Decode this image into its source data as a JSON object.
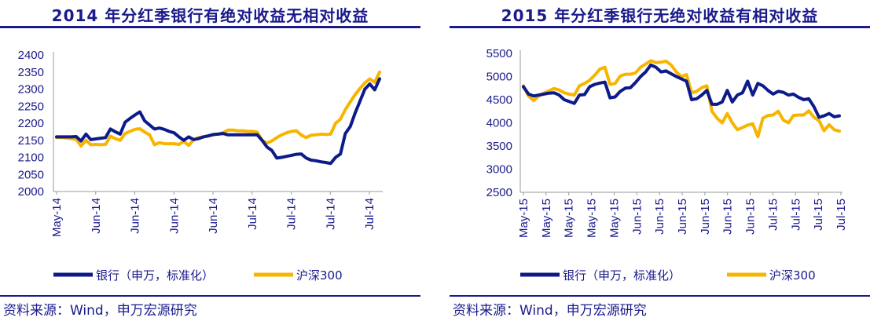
{
  "panels": [
    {
      "title": "2014 年分红季银行有绝对收益无相对收益",
      "source": "资料来源：Wind，申万宏源研究"
    },
    {
      "title": "2015 年分红季银行无绝对收益有相对收益",
      "source": "资料来源：Wind，申万宏源研究"
    }
  ],
  "colors": {
    "bank": "#0d1a8a",
    "hs300": "#f7b500",
    "text": "#1a1a8c"
  },
  "chart_data": [
    {
      "type": "line",
      "title": "2014 年分红季银行有绝对收益无相对收益",
      "ylim": [
        2000,
        2400
      ],
      "yticks": [
        2000,
        2050,
        2100,
        2150,
        2200,
        2250,
        2300,
        2350,
        2400
      ],
      "xticks": [
        "May-14",
        "Jun-14",
        "Jun-14",
        "Jun-14",
        "Jun-14",
        "Jul-14",
        "Jul-14",
        "Jul-14",
        "Jul-14"
      ],
      "legend_position": "bottom",
      "series": [
        {
          "name": "银行（申万，标准化）",
          "values": [
            2160,
            2160,
            2160,
            2160,
            2161,
            2148,
            2168,
            2152,
            2154,
            2156,
            2158,
            2183,
            2175,
            2168,
            2203,
            2214,
            2224,
            2233,
            2207,
            2195,
            2183,
            2186,
            2182,
            2176,
            2172,
            2160,
            2150,
            2160,
            2152,
            2155,
            2160,
            2163,
            2167,
            2168,
            2170,
            2166,
            2166,
            2166,
            2166,
            2166,
            2166,
            2166,
            2150,
            2130,
            2120,
            2098,
            2100,
            2103,
            2106,
            2109,
            2110,
            2098,
            2092,
            2090,
            2087,
            2085,
            2082,
            2100,
            2110,
            2170,
            2190,
            2230,
            2265,
            2300,
            2315,
            2298,
            2330
          ]
        },
        {
          "name": "沪深300",
          "values": [
            2158,
            2158,
            2157,
            2155,
            2153,
            2133,
            2150,
            2137,
            2138,
            2137,
            2138,
            2162,
            2155,
            2150,
            2170,
            2176,
            2182,
            2184,
            2174,
            2166,
            2137,
            2143,
            2140,
            2140,
            2140,
            2138,
            2147,
            2135,
            2152,
            2158,
            2160,
            2162,
            2166,
            2168,
            2172,
            2180,
            2180,
            2178,
            2178,
            2176,
            2176,
            2174,
            2150,
            2142,
            2148,
            2158,
            2166,
            2172,
            2176,
            2178,
            2165,
            2158,
            2165,
            2166,
            2168,
            2167,
            2168,
            2200,
            2212,
            2240,
            2262,
            2284,
            2302,
            2318,
            2330,
            2320,
            2350
          ]
        }
      ]
    },
    {
      "type": "line",
      "title": "2015 年分红季银行无绝对收益有相对收益",
      "ylim": [
        2500,
        5500
      ],
      "yticks": [
        2500,
        3000,
        3500,
        4000,
        4500,
        5000,
        5500
      ],
      "xticks": [
        "May-15",
        "May-15",
        "May-15",
        "May-15",
        "May-15",
        "Jun-15",
        "Jun-15",
        "Jun-15",
        "Jun-15",
        "Jun-15",
        "Jun-15",
        "Jul-15",
        "Jul-15",
        "Jul-15",
        "Jul-15"
      ],
      "legend_position": "bottom",
      "series": [
        {
          "name": "银行（申万，标准化）",
          "values": [
            4780,
            4620,
            4580,
            4600,
            4620,
            4640,
            4650,
            4600,
            4500,
            4460,
            4420,
            4600,
            4610,
            4780,
            4830,
            4860,
            4880,
            4540,
            4560,
            4680,
            4750,
            4760,
            4870,
            5000,
            5100,
            5250,
            5200,
            5100,
            5120,
            5060,
            5000,
            4950,
            4900,
            4500,
            4520,
            4600,
            4700,
            4400,
            4400,
            4450,
            4700,
            4450,
            4600,
            4650,
            4900,
            4600,
            4850,
            4800,
            4700,
            4620,
            4680,
            4660,
            4600,
            4620,
            4550,
            4500,
            4520,
            4350,
            4120,
            4150,
            4200,
            4130,
            4150
          ]
        },
        {
          "name": "沪深300",
          "values": [
            4800,
            4580,
            4480,
            4580,
            4640,
            4690,
            4740,
            4710,
            4650,
            4620,
            4600,
            4800,
            4850,
            4920,
            5030,
            5160,
            5200,
            4830,
            4850,
            5010,
            5050,
            5050,
            5080,
            5200,
            5270,
            5340,
            5300,
            5310,
            5330,
            5250,
            5100,
            5000,
            5040,
            4650,
            4680,
            4760,
            4800,
            4250,
            4100,
            4000,
            4200,
            4000,
            3850,
            3900,
            3950,
            3980,
            3700,
            4100,
            4160,
            4170,
            4250,
            4060,
            4000,
            4160,
            4170,
            4170,
            4260,
            4120,
            4050,
            3830,
            3960,
            3850,
            3820
          ]
        }
      ]
    }
  ]
}
